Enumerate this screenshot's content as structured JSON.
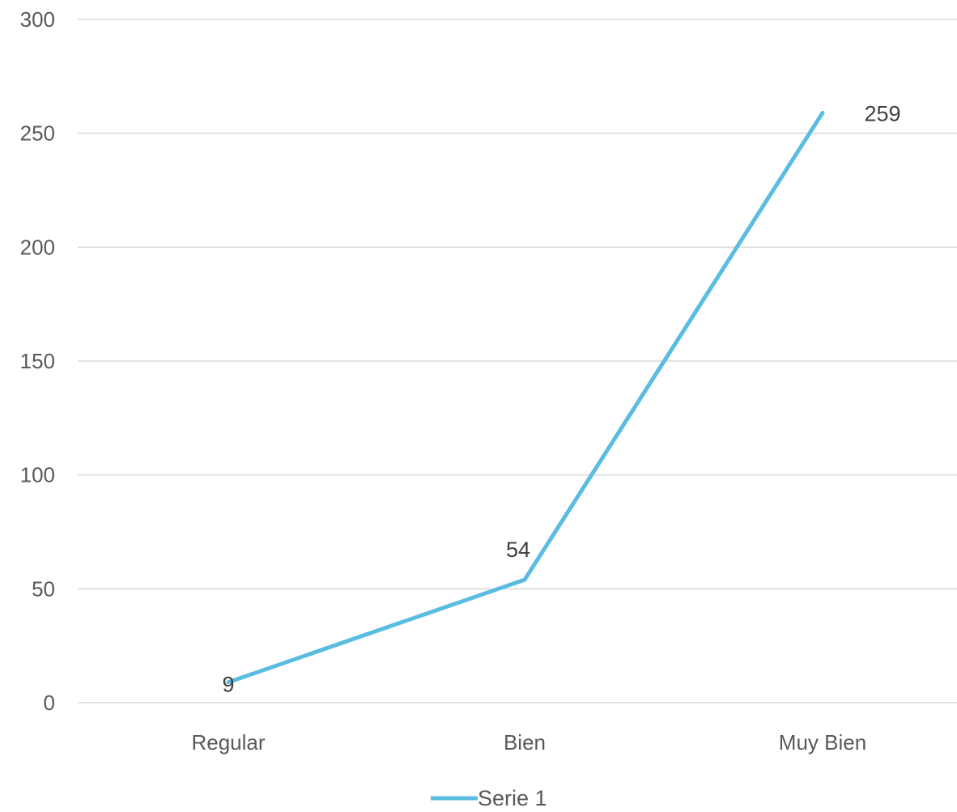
{
  "chart_data": {
    "type": "line",
    "categories": [
      "Regular",
      "Bien",
      "Muy Bien"
    ],
    "series": [
      {
        "name": "Serie 1",
        "values": [
          9,
          54,
          259
        ],
        "color": "#5bbce1"
      }
    ],
    "data_labels": [
      "9",
      "54",
      "259"
    ],
    "ylim": [
      0,
      300
    ],
    "yticks": [
      0,
      50,
      100,
      150,
      200,
      250,
      300
    ],
    "ytick_labels": [
      "0",
      "50",
      "100",
      "150",
      "200",
      "250",
      "300"
    ],
    "grid": true,
    "legend": {
      "position": "bottom",
      "entries": [
        "Serie 1"
      ]
    }
  }
}
